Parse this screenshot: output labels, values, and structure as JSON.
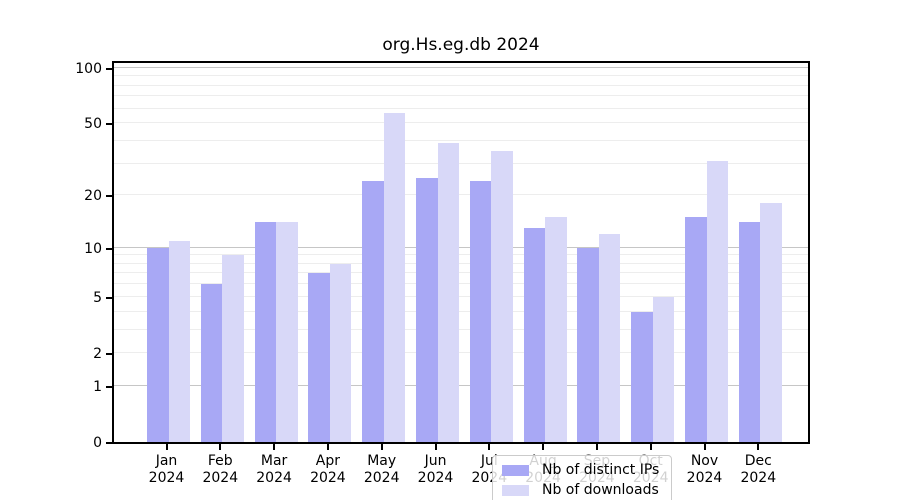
{
  "chart_data": {
    "type": "bar",
    "title": "org.Hs.eg.db 2024",
    "categories": [
      "Jan",
      "Feb",
      "Mar",
      "Apr",
      "May",
      "Jun",
      "Jul",
      "Aug",
      "Sep",
      "Oct",
      "Nov",
      "Dec"
    ],
    "category_year": "2024",
    "series": [
      {
        "name": "Nb of distinct IPs",
        "color": "#a8a8f5",
        "values": [
          10,
          6,
          14,
          7,
          24,
          25,
          24,
          13,
          10,
          4,
          15,
          14
        ]
      },
      {
        "name": "Nb of downloads",
        "color": "#d8d8f8",
        "values": [
          11,
          9,
          14,
          8,
          57,
          39,
          35,
          15,
          12,
          5,
          31,
          18
        ]
      }
    ],
    "y_scale": "log1p",
    "ylim": [
      0,
      100
    ],
    "y_tick_labels": [
      0,
      1,
      2,
      5,
      10,
      20,
      50,
      100
    ],
    "gridlines": {
      "emphasized": [
        1,
        10,
        100
      ],
      "light": [
        2,
        3,
        4,
        5,
        6,
        7,
        8,
        9,
        20,
        30,
        40,
        50,
        60,
        70,
        80,
        90
      ]
    },
    "legend": {
      "position": "inside-bottom-center",
      "entries": [
        "Nb of distinct IPs",
        "Nb of downloads"
      ]
    },
    "colors": {
      "plot_border": "#000000",
      "grid_major": "#c6c6c6",
      "grid_light": "#ededed",
      "background": "#ffffff"
    }
  }
}
